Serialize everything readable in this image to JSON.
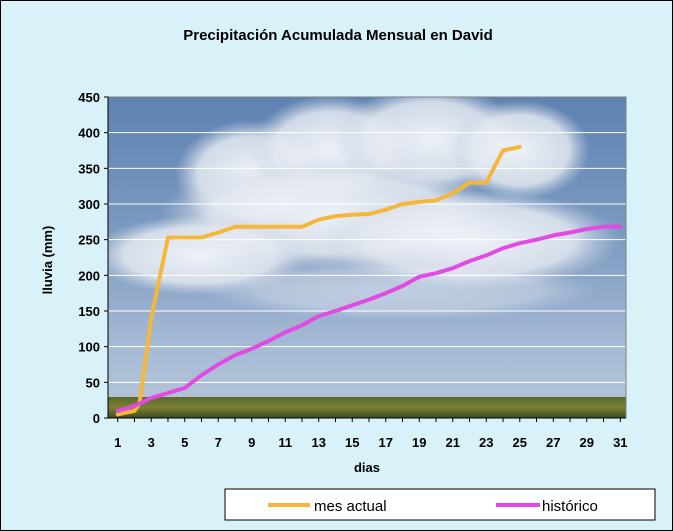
{
  "chart_data": {
    "type": "line",
    "title": "Precipitación Acumulada Mensual en David",
    "xlabel": "dias",
    "ylabel": "lluvia (mm)",
    "xlim": [
      1,
      31
    ],
    "ylim": [
      0,
      450
    ],
    "yticks": [
      "0",
      "50",
      "100",
      "150",
      "200",
      "250",
      "300",
      "350",
      "400",
      "450"
    ],
    "xticks": [
      "1",
      "3",
      "5",
      "7",
      "9",
      "11",
      "13",
      "15",
      "17",
      "19",
      "21",
      "23",
      "25",
      "27",
      "29",
      "31"
    ],
    "grid": true,
    "legend_position": "bottom",
    "background": "sky-clouds-landscape-photo",
    "series": [
      {
        "name": "mes actual",
        "color": "#F5B73B",
        "x": [
          1,
          2,
          2.3,
          3,
          4,
          5,
          6,
          7,
          8,
          9,
          10,
          11,
          12,
          13,
          14,
          15,
          16,
          17,
          18,
          19,
          20,
          21,
          22,
          23,
          24,
          25
        ],
        "values": [
          5,
          10,
          20,
          140,
          253,
          253,
          253,
          260,
          268,
          268,
          268,
          268,
          268,
          278,
          283,
          285,
          286,
          292,
          300,
          303,
          305,
          315,
          330,
          330,
          375,
          380
        ]
      },
      {
        "name": "histórico",
        "color": "#E24BE2",
        "x": [
          1,
          2,
          3,
          4,
          5,
          6,
          7,
          8,
          9,
          10,
          11,
          12,
          13,
          14,
          15,
          16,
          17,
          18,
          19,
          20,
          21,
          22,
          23,
          24,
          25,
          26,
          27,
          28,
          29,
          30,
          31
        ],
        "values": [
          10,
          17,
          28,
          35,
          42,
          60,
          75,
          88,
          97,
          108,
          120,
          130,
          143,
          150,
          158,
          166,
          175,
          185,
          198,
          203,
          210,
          220,
          228,
          238,
          245,
          250,
          256,
          260,
          265,
          268,
          268
        ]
      }
    ]
  }
}
